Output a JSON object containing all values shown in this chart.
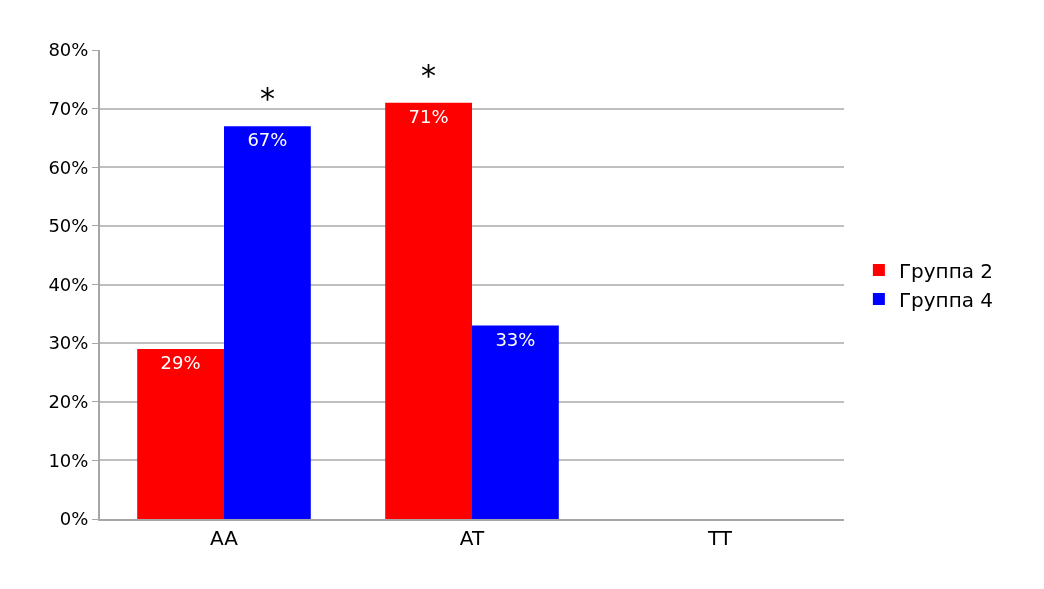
{
  "chart_data": {
    "type": "bar",
    "categories": [
      "AA",
      "AT",
      "TT"
    ],
    "series": [
      {
        "name": "Группа 2",
        "color": "#ff0000",
        "values": [
          29,
          71,
          0
        ],
        "value_labels": [
          "29%",
          "71%",
          null
        ]
      },
      {
        "name": "Группа 4",
        "color": "#0000ff",
        "values": [
          67,
          33,
          0
        ],
        "value_labels": [
          "67%",
          "33%",
          null
        ]
      }
    ],
    "ylim": [
      0,
      80
    ],
    "yticks": [
      {
        "value": 0,
        "label": "0%"
      },
      {
        "value": 10,
        "label": "10%"
      },
      {
        "value": 20,
        "label": "20%"
      },
      {
        "value": 30,
        "label": "30%"
      },
      {
        "value": 40,
        "label": "40%"
      },
      {
        "value": 50,
        "label": "50%"
      },
      {
        "value": 60,
        "label": "60%"
      },
      {
        "value": 70,
        "label": "70%"
      },
      {
        "value": 80,
        "label": "80%"
      }
    ],
    "annotations": [
      {
        "text": "*",
        "x": "AA",
        "y": 67
      },
      {
        "text": "*",
        "x": "AT",
        "y": 71
      }
    ],
    "grid": "y",
    "legend": "right"
  }
}
